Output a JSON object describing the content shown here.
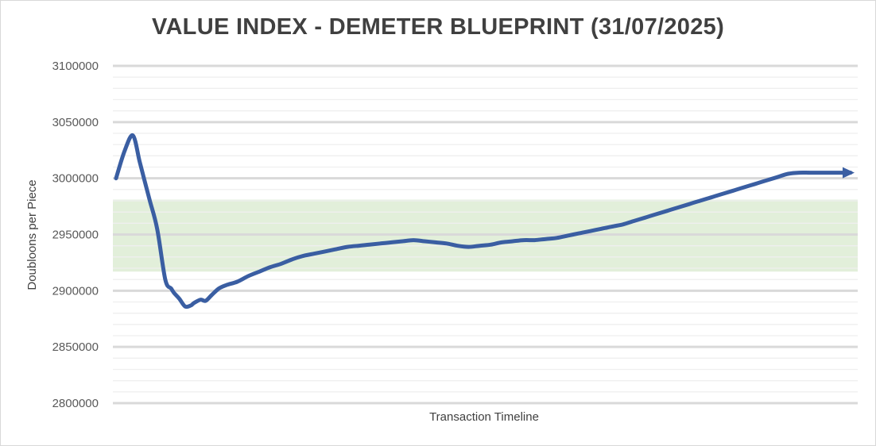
{
  "chart_data": {
    "type": "line",
    "title": "VALUE INDEX - DEMETER BLUEPRINT (31/07/2025)",
    "xlabel": "Transaction Timeline",
    "ylabel": "Doubloons per Piece",
    "ylim": [
      2800000,
      3100000
    ],
    "yticks": [
      "2800000",
      "2850000",
      "2900000",
      "2950000",
      "3000000",
      "3050000",
      "3100000"
    ],
    "grid": true,
    "legend": "none",
    "band": {
      "from": 2917000,
      "to": 2981000,
      "color": "#e2efda"
    },
    "series": [
      {
        "color": "#3a5ea2",
        "end_marker": "arrow",
        "x": [
          0,
          1.2,
          2.3,
          3.2,
          3.8,
          4.6,
          5.6,
          6.7,
          7.5,
          7.9,
          8.6,
          9.4,
          10.2,
          10.6,
          11.5,
          12.2,
          13,
          14,
          15,
          16.5,
          18,
          19.5,
          21,
          22.5,
          24,
          25.5,
          27,
          28.5,
          30,
          31.5,
          33,
          34.5,
          36,
          37.5,
          39,
          40.5,
          42,
          43.5,
          45,
          46.5,
          48,
          49.5,
          51,
          52.5,
          54,
          55.5,
          57,
          58.5,
          60,
          61.5,
          63,
          64.5,
          66,
          67.5,
          69,
          70.5,
          72,
          73.5,
          75,
          76.5,
          78,
          79.5,
          81,
          82.5,
          84,
          85.5,
          87,
          88.5,
          90,
          91.5,
          93,
          94.5,
          96,
          97.5,
          99,
          100
        ],
        "y": [
          3000000,
          3025000,
          3038000,
          3015000,
          3000000,
          2980000,
          2955000,
          2910000,
          2902000,
          2898000,
          2893000,
          2886000,
          2887000,
          2889000,
          2892000,
          2891000,
          2896000,
          2902000,
          2905000,
          2908000,
          2913000,
          2917000,
          2921000,
          2924000,
          2928000,
          2931000,
          2933000,
          2935000,
          2937000,
          2939000,
          2940000,
          2941000,
          2942000,
          2943000,
          2944000,
          2945000,
          2944000,
          2943000,
          2942000,
          2940000,
          2939000,
          2940000,
          2941000,
          2943000,
          2944000,
          2945000,
          2945000,
          2946000,
          2947000,
          2949000,
          2951000,
          2953000,
          2955000,
          2957000,
          2959000,
          2962000,
          2965000,
          2968000,
          2971000,
          2974000,
          2977000,
          2980000,
          2983000,
          2986000,
          2989000,
          2992000,
          2995000,
          2998000,
          3001000,
          3004000,
          3005000,
          3005000,
          3005000,
          3005000,
          3005000,
          3005000
        ]
      }
    ]
  }
}
